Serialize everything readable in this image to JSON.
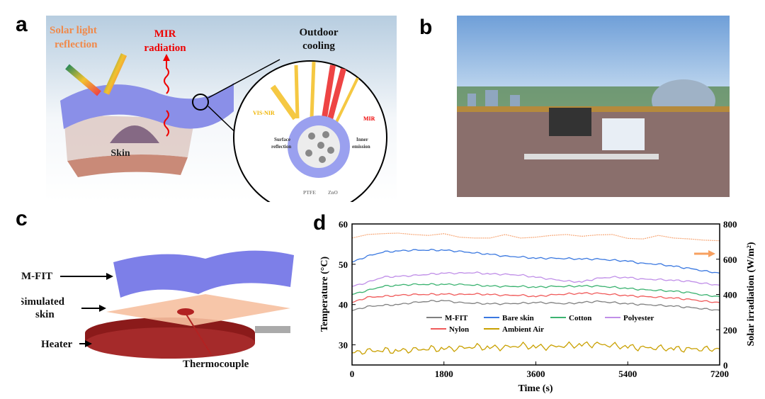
{
  "panels": {
    "a": {
      "label": "a",
      "solar": [
        "Solar light",
        "reflection"
      ],
      "mir": [
        "MIR",
        "radiation"
      ],
      "outdoor": [
        "Outdoor",
        "cooling"
      ],
      "skin": "Skin",
      "visnir": "VIS-NIR",
      "mir_small": "MIR",
      "surface": [
        "Surface",
        "reflection"
      ],
      "inner": [
        "Inner",
        "emission"
      ],
      "ptfe": "PTFE",
      "zno": "ZnO"
    },
    "b": {
      "label": "b"
    },
    "c": {
      "label": "c",
      "mfit": "M-FIT",
      "skin": [
        "Simulated",
        "skin"
      ],
      "heater": "Heater",
      "thermocouple": "Thermocouple"
    },
    "d": {
      "label": "d"
    }
  },
  "colors": {
    "mfit": "#808080",
    "bare": "#3a78e0",
    "cotton": "#3cb371",
    "polyester": "#c08fe8",
    "nylon": "#f05a5a",
    "ambient": "#c9a000",
    "solar": "#f7a878"
  },
  "chart_data": {
    "type": "line",
    "xlabel": "Time (s)",
    "ylabel": "Temperature (°C)",
    "y2label": "Solar irradiation (W/m²)",
    "xlim": [
      0,
      7200
    ],
    "ylim": [
      25,
      60
    ],
    "y2lim": [
      0,
      800
    ],
    "xticks": [
      0,
      1800,
      3600,
      5400,
      7200
    ],
    "yticks": [
      30,
      40,
      50,
      60
    ],
    "y2ticks": [
      0,
      200,
      400,
      600,
      800
    ],
    "legend_position": "center",
    "x": [
      0,
      300,
      600,
      900,
      1200,
      1500,
      1800,
      2100,
      2400,
      2700,
      3000,
      3300,
      3600,
      3900,
      4200,
      4500,
      4800,
      5100,
      5400,
      5700,
      6000,
      6300,
      6600,
      6900,
      7200
    ],
    "series": [
      {
        "key": "mfit",
        "name": "M-FIT",
        "axis": "left",
        "values": [
          38.5,
          39.5,
          39.8,
          40,
          40.5,
          40.8,
          41,
          40.5,
          40.3,
          40.2,
          40.2,
          40.3,
          40.5,
          40.4,
          40.2,
          40.5,
          40.8,
          40.5,
          40.2,
          40,
          39.8,
          39.6,
          39.3,
          38.9,
          38.6
        ]
      },
      {
        "key": "bare",
        "name": "Bare skin",
        "axis": "left",
        "values": [
          50.5,
          52,
          53,
          53.3,
          53.5,
          53.5,
          53.5,
          53.2,
          52.8,
          52.5,
          52,
          51.8,
          51.5,
          51.5,
          51.4,
          51.3,
          51.3,
          51,
          50.8,
          50.2,
          50,
          49.5,
          49,
          48.3,
          47.8
        ]
      },
      {
        "key": "cotton",
        "name": "Cotton",
        "axis": "left",
        "values": [
          42.5,
          43.5,
          44.5,
          44.8,
          45,
          45,
          45,
          45,
          44.8,
          44.6,
          44.5,
          44.5,
          44.3,
          44.5,
          44.5,
          44.6,
          44.6,
          44.3,
          44,
          43.7,
          43.5,
          43.3,
          43,
          42.3,
          42
        ]
      },
      {
        "key": "polyester",
        "name": "Polyester",
        "axis": "left",
        "values": [
          44.5,
          45.5,
          46.8,
          47,
          47.2,
          47.5,
          47.8,
          47.8,
          47.9,
          47.6,
          47.5,
          47.3,
          46.8,
          46.3,
          45.8,
          45.6,
          46.5,
          46.8,
          46.7,
          46.3,
          46.2,
          46,
          45.8,
          45.2,
          44.8
        ]
      },
      {
        "key": "nylon",
        "name": "Nylon",
        "axis": "left",
        "values": [
          40.5,
          41.8,
          42,
          42.3,
          42.5,
          42.5,
          42.6,
          42.5,
          42.6,
          42.5,
          42.3,
          42.3,
          42,
          42.4,
          42.6,
          42.8,
          42.8,
          42.5,
          42.2,
          42,
          41.8,
          41.6,
          41.3,
          40.8,
          40.5
        ]
      },
      {
        "key": "ambient",
        "name": "Ambient Air",
        "axis": "left",
        "values": [
          28,
          28.5,
          28.6,
          28.5,
          28.8,
          29,
          29,
          29.2,
          29.5,
          29.3,
          29.4,
          29.8,
          29.5,
          29.5,
          29.8,
          30,
          30.2,
          29.8,
          29.5,
          29.3,
          29.2,
          29,
          29,
          28.9,
          29
        ]
      },
      {
        "key": "solar",
        "name": "Solar irradiation",
        "axis": "right",
        "values": [
          720,
          740,
          745,
          748,
          740,
          735,
          745,
          725,
          720,
          720,
          740,
          720,
          725,
          735,
          740,
          730,
          738,
          740,
          718,
          715,
          735,
          720,
          715,
          708,
          705
        ]
      }
    ]
  }
}
